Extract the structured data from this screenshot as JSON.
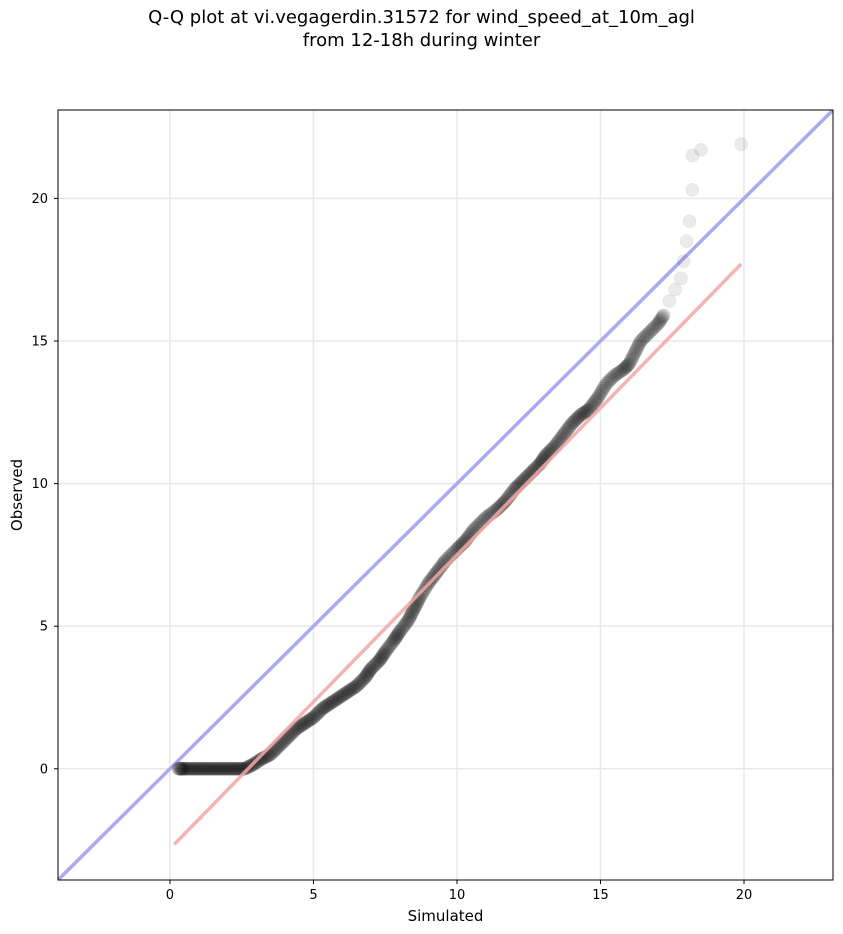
{
  "chart_data": {
    "type": "scatter",
    "title_line1": "Q-Q plot at vi.vegagerdin.31572 for wind_speed_at_10m_agl",
    "title_line2": "from 12-18h during winter",
    "xlabel": "Simulated",
    "ylabel": "Observed",
    "xlim": [
      -3.9,
      23.1
    ],
    "ylim": [
      -3.9,
      23.1
    ],
    "xticks": [
      0,
      5,
      10,
      15,
      20
    ],
    "yticks": [
      0,
      5,
      10,
      15,
      20
    ],
    "grid": true,
    "reference_line": {
      "name": "",
      "color": "#aaaaf0",
      "from": [
        -3.9,
        -3.9
      ],
      "to": [
        23.1,
        23.1
      ]
    },
    "fit_line": {
      "name": "",
      "color": "#f4a6a6",
      "from": [
        0.15,
        -2.65
      ],
      "to": [
        19.9,
        17.7
      ]
    },
    "point_color": "#000000",
    "quantiles": [
      [
        0.3,
        0.0
      ],
      [
        0.5,
        0.0
      ],
      [
        0.8,
        0.0
      ],
      [
        1.1,
        0.0
      ],
      [
        1.4,
        0.0
      ],
      [
        1.7,
        0.0
      ],
      [
        2.0,
        0.0
      ],
      [
        2.3,
        0.0
      ],
      [
        2.6,
        0.0
      ],
      [
        2.9,
        0.15
      ],
      [
        3.2,
        0.35
      ],
      [
        3.5,
        0.5
      ],
      [
        3.8,
        0.8
      ],
      [
        4.1,
        1.1
      ],
      [
        4.4,
        1.4
      ],
      [
        4.7,
        1.6
      ],
      [
        5.0,
        1.8
      ],
      [
        5.3,
        2.1
      ],
      [
        5.6,
        2.3
      ],
      [
        5.9,
        2.5
      ],
      [
        6.2,
        2.7
      ],
      [
        6.5,
        2.9
      ],
      [
        6.8,
        3.2
      ],
      [
        7.0,
        3.5
      ],
      [
        7.3,
        3.8
      ],
      [
        7.5,
        4.1
      ],
      [
        7.8,
        4.5
      ],
      [
        8.0,
        4.8
      ],
      [
        8.3,
        5.2
      ],
      [
        8.5,
        5.6
      ],
      [
        8.7,
        6.0
      ],
      [
        9.0,
        6.5
      ],
      [
        9.3,
        6.9
      ],
      [
        9.6,
        7.3
      ],
      [
        10.0,
        7.7
      ],
      [
        10.3,
        8.0
      ],
      [
        10.6,
        8.4
      ],
      [
        11.0,
        8.8
      ],
      [
        11.4,
        9.1
      ],
      [
        11.7,
        9.4
      ],
      [
        12.0,
        9.8
      ],
      [
        12.3,
        10.1
      ],
      [
        12.6,
        10.4
      ],
      [
        12.9,
        10.7
      ],
      [
        13.1,
        11.0
      ],
      [
        13.4,
        11.3
      ],
      [
        13.7,
        11.7
      ],
      [
        14.0,
        12.1
      ],
      [
        14.3,
        12.4
      ],
      [
        14.6,
        12.6
      ],
      [
        14.9,
        13.0
      ],
      [
        15.2,
        13.5
      ],
      [
        15.5,
        13.8
      ],
      [
        15.8,
        14.0
      ],
      [
        16.0,
        14.2
      ],
      [
        16.2,
        14.6
      ],
      [
        16.4,
        15.0
      ],
      [
        16.7,
        15.3
      ],
      [
        17.0,
        15.6
      ],
      [
        17.2,
        15.9
      ],
      [
        17.4,
        16.4
      ],
      [
        17.6,
        16.8
      ],
      [
        17.8,
        17.2
      ],
      [
        17.9,
        17.8
      ],
      [
        18.0,
        18.5
      ],
      [
        18.1,
        19.2
      ],
      [
        18.2,
        20.3
      ],
      [
        18.2,
        21.5
      ],
      [
        18.5,
        21.7
      ],
      [
        19.9,
        21.9
      ]
    ]
  }
}
